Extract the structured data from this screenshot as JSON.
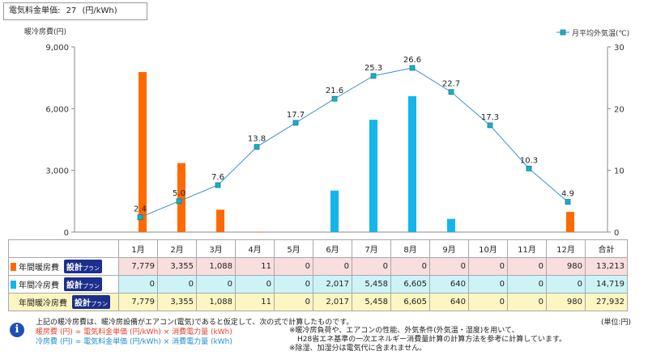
{
  "rate_box": {
    "label": "電気料金単価:",
    "value": "27",
    "unit": "(円/kWh)"
  },
  "colors": {
    "heating": "#ff6a00",
    "cooling": "#13b5ea",
    "line": "#3a8fd6",
    "marker": "#19b0c4"
  },
  "chart_data": {
    "type": "bar",
    "categories": [
      "1月",
      "2月",
      "3月",
      "4月",
      "5月",
      "6月",
      "7月",
      "8月",
      "9月",
      "10月",
      "11月",
      "12月"
    ],
    "series": [
      {
        "name": "年間暖房費",
        "values": [
          7779,
          3355,
          1088,
          11,
          0,
          0,
          0,
          0,
          0,
          0,
          0,
          980
        ]
      },
      {
        "name": "年間冷房費",
        "values": [
          0,
          0,
          0,
          0,
          0,
          2017,
          5458,
          6605,
          640,
          0,
          0,
          0
        ]
      }
    ],
    "line_series": {
      "name": "月平均外気温(℃)",
      "values": [
        2.4,
        5.0,
        7.6,
        13.8,
        17.7,
        21.6,
        25.3,
        26.6,
        22.7,
        17.3,
        10.3,
        4.9
      ]
    },
    "ylabel": "暖冷房費(円)",
    "ylim": [
      0,
      9000
    ],
    "yticks": [
      "0",
      "3,000",
      "6,000",
      "9,000"
    ],
    "y2label": "月平均外気温(℃)",
    "y2lim": [
      0,
      30
    ],
    "y2ticks": [
      "0",
      "10",
      "20",
      "30"
    ],
    "legend": "top-right",
    "grid": false
  },
  "table": {
    "headers": [
      "1月",
      "2月",
      "3月",
      "4月",
      "5月",
      "6月",
      "7月",
      "8月",
      "9月",
      "10月",
      "11月",
      "12月",
      "合計"
    ],
    "plan_main": "設計",
    "plan_small": "プラン",
    "rows": [
      {
        "label": "年間暖房費",
        "values": [
          "7,779",
          "3,355",
          "1,088",
          "11",
          "0",
          "0",
          "0",
          "0",
          "0",
          "0",
          "0",
          "980",
          "13,213"
        ]
      },
      {
        "label": "年間冷房費",
        "values": [
          "0",
          "0",
          "0",
          "0",
          "0",
          "2,017",
          "5,458",
          "6,605",
          "640",
          "0",
          "0",
          "0",
          "14,719"
        ]
      },
      {
        "label": "年間暖冷房費",
        "values": [
          "7,779",
          "3,355",
          "1,088",
          "11",
          "0",
          "2,017",
          "5,458",
          "6,605",
          "640",
          "0",
          "0",
          "980",
          "27,932"
        ]
      }
    ]
  },
  "info_icon": "i",
  "notes": {
    "intro": "上記の暖冷房費は、暖冷房設備がエアコン(電気)であると仮定して、次の式で計算したものです。",
    "unit": "(単位:円)",
    "heat_formula": "暖房費 (円) = 電気料金単価 (円/kWh) × 消費電力量 (kWh)",
    "cool_formula": "冷房費 (円) = 電気料金単価 (円/kWh) × 消費電力量 (kWh)",
    "note1": "※暖冷房負荷や、エアコンの性能、外気条件(外気温・湿度)を用いて、",
    "note2": "H28省エネ基準の一次エネルギー消費量計算の計算方法を参考に計算しています。",
    "note3": "※除湿、加湿分は電気代に含まれません。"
  }
}
